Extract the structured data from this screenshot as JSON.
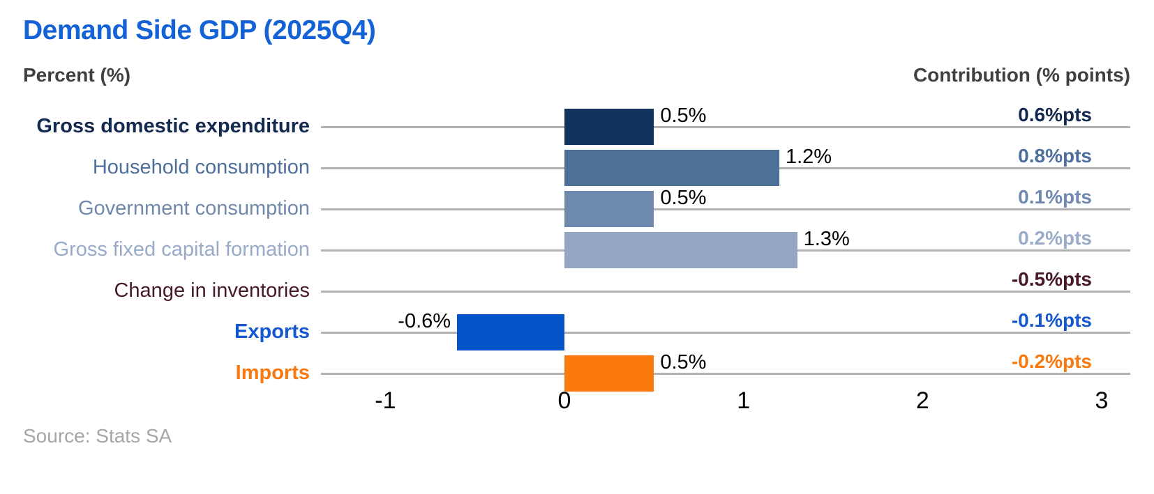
{
  "title": "Demand Side GDP (2025Q4)",
  "headers": {
    "left": "Percent (%)",
    "right": "Contribution (% points)"
  },
  "source": "Source: Stats SA",
  "colors": {
    "title": "#1362d6",
    "headers": "#404040",
    "gridline": "#b2b2b2",
    "value_label": "#000000",
    "axis_tick": "#000000",
    "source": "#a6a6a6",
    "background": "#ffffff"
  },
  "chart_data": {
    "type": "bar",
    "orientation": "horizontal",
    "title": "Demand Side GDP (2025Q4)",
    "xlabel": "Percent (%)",
    "grid": "one horizontal gridline per category row",
    "legend": "none",
    "x_axis": {
      "ticks": [
        -1,
        0,
        1,
        2,
        3
      ],
      "tick_labels": [
        "-1",
        "0",
        "1",
        "2",
        "3"
      ],
      "range": [
        -1.36,
        3.16
      ]
    },
    "categories": [
      "Gross domestic expenditure",
      "Household consumption",
      "Government consumption",
      "Gross fixed capital formation",
      "Change in inventories",
      "Exports",
      "Imports"
    ],
    "series": [
      {
        "name": "Percent (%)",
        "values": [
          0.5,
          1.2,
          0.5,
          1.3,
          null,
          -0.6,
          0.5
        ]
      },
      {
        "name": "Contribution (% points)",
        "values": [
          0.6,
          0.8,
          0.1,
          0.2,
          -0.5,
          -0.1,
          -0.2
        ]
      }
    ],
    "rows": [
      {
        "label": "Gross domestic expenditure",
        "bold": true,
        "label_color": "#13294f",
        "bar_color": "#12335e",
        "value": 0.5,
        "value_label": "0.5%",
        "contribution": "0.6%pts",
        "contribution_color": "#13294f"
      },
      {
        "label": "Household consumption",
        "bold": false,
        "label_color": "#4d6f9b",
        "bar_color": "#4d7096",
        "value": 1.2,
        "value_label": "1.2%",
        "contribution": "0.8%pts",
        "contribution_color": "#4d6f9b"
      },
      {
        "label": "Government consumption",
        "bold": false,
        "label_color": "#7089ae",
        "bar_color": "#6e8aae",
        "value": 0.5,
        "value_label": "0.5%",
        "contribution": "0.1%pts",
        "contribution_color": "#7089ae"
      },
      {
        "label": "Gross fixed capital formation",
        "bold": false,
        "label_color": "#99abc9",
        "bar_color": "#93a6c3",
        "value": 1.3,
        "value_label": "1.3%",
        "contribution": "0.2%pts",
        "contribution_color": "#99abc9"
      },
      {
        "label": "Change in inventories",
        "bold": false,
        "label_color": "#47182b",
        "bar_color": null,
        "value": null,
        "value_label": "",
        "contribution": "-0.5%pts",
        "contribution_color": "#47182b"
      },
      {
        "label": "Exports",
        "bold": true,
        "label_color": "#1457d0",
        "bar_color": "#0454c8",
        "value": -0.6,
        "value_label": "-0.6%",
        "contribution": "-0.1%pts",
        "contribution_color": "#1457d0"
      },
      {
        "label": "Imports",
        "bold": true,
        "label_color": "#f8790f",
        "bar_color": "#fb7a0e",
        "value": 0.5,
        "value_label": "0.5%",
        "contribution": "-0.2%pts",
        "contribution_color": "#f8790f"
      }
    ]
  }
}
